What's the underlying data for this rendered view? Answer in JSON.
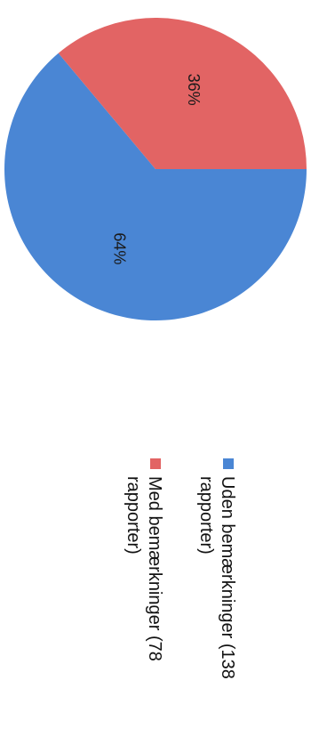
{
  "chart_data": {
    "type": "pie",
    "slices": [
      {
        "label": "Uden bemærkninger (138 rapporter)",
        "legend_lines": [
          "Uden bemærkninger (138",
          "rapporter)"
        ],
        "value": 138,
        "percent_label": "64%",
        "color": "#4a86d4"
      },
      {
        "label": "Med bemærkninger (78 rapporter)",
        "legend_lines": [
          "Med bemærkninger (78",
          "rapporter)"
        ],
        "value": 78,
        "percent_label": "36%",
        "color": "#e26464"
      }
    ],
    "legend_position": "bottom",
    "orientation": "rotated 90° clockwise"
  }
}
